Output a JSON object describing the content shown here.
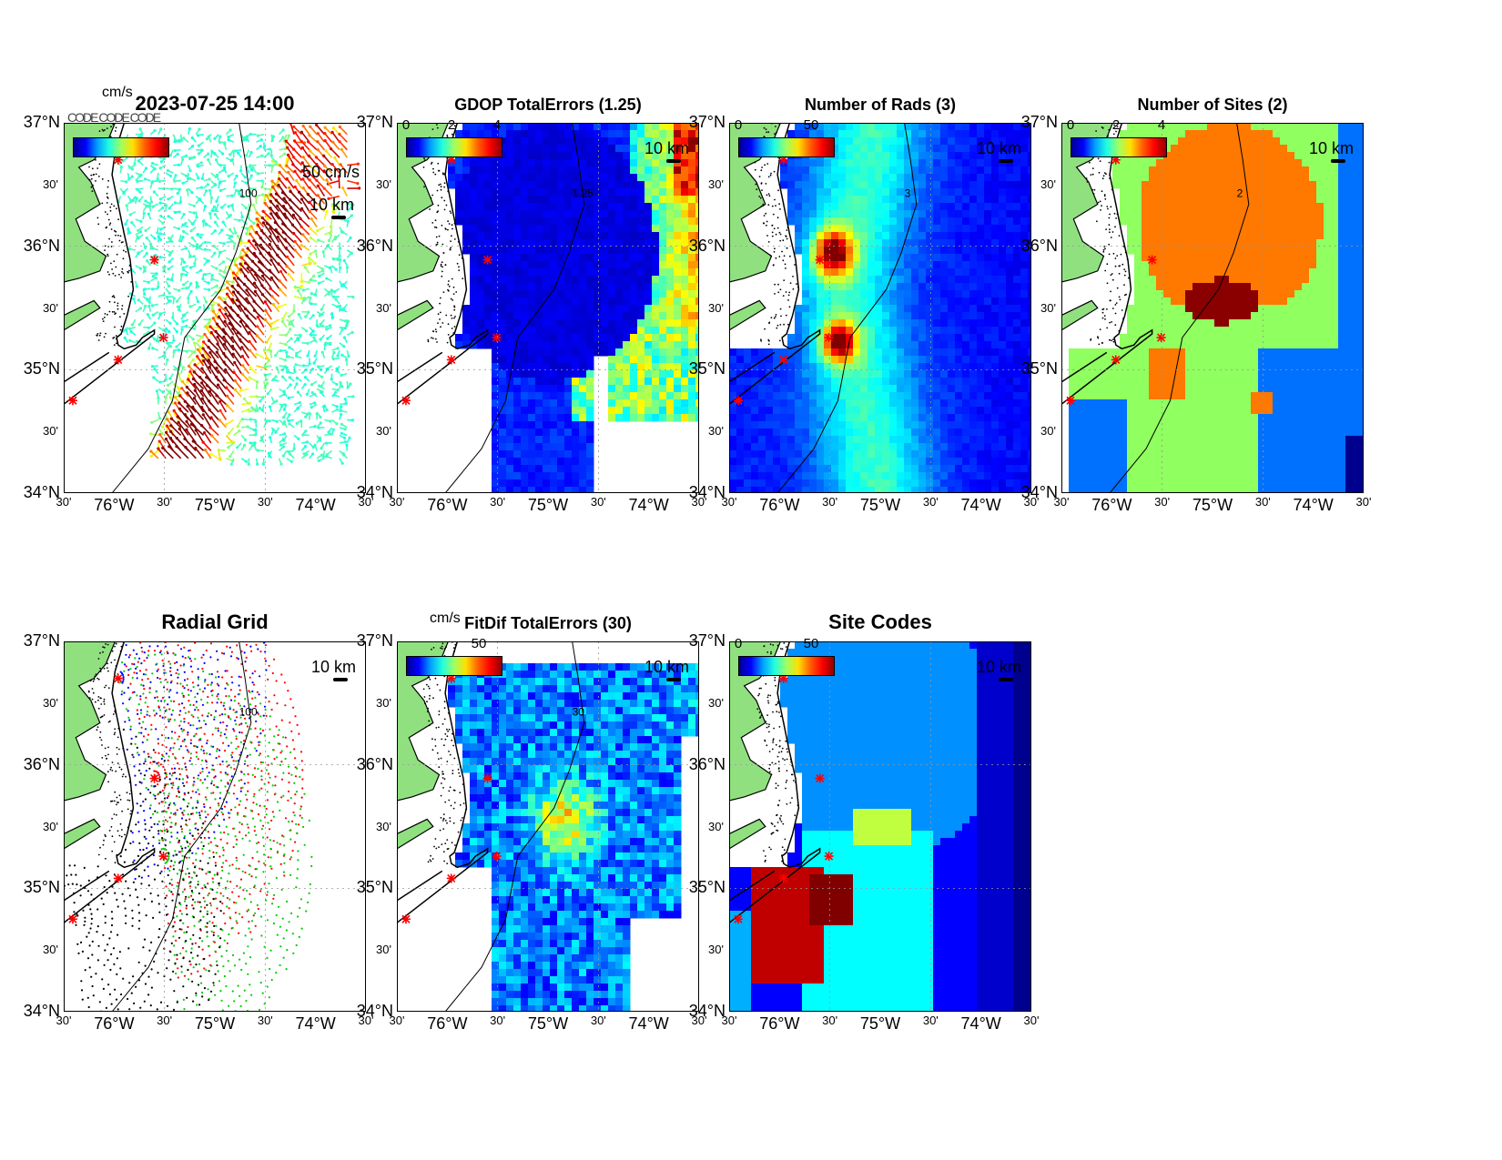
{
  "figure": {
    "panels": [
      {
        "id": "vectors",
        "title": "2023-07-25 14:00",
        "title_size": "big",
        "pos": "r1c1",
        "field": "vectors",
        "colorbar": {
          "ticks": [],
          "unit": "cm/s"
        },
        "scale_label": "10 km",
        "vector_label": "50 cm/s",
        "overlap_label": "CODE CODE CODE",
        "contour_label": "100"
      },
      {
        "id": "gdop",
        "title": "GDOP TotalErrors (1.25)",
        "title_size": "small",
        "pos": "r1c2",
        "field": "gdop",
        "colorbar": {
          "ticks": [
            "0",
            "2",
            "4"
          ],
          "unit": ""
        },
        "scale_label": "10 km",
        "contour_label": "1.25"
      },
      {
        "id": "nrads",
        "title": "Number of Rads (3)",
        "title_size": "small",
        "pos": "r1c3",
        "field": "nrads",
        "colorbar": {
          "ticks": [
            "0",
            "50"
          ],
          "unit": ""
        },
        "scale_label": "10 km",
        "contour_label": "3"
      },
      {
        "id": "nsites",
        "title": "Number of Sites (2)",
        "title_size": "small",
        "pos": "r1c4",
        "field": "nsites",
        "colorbar": {
          "ticks": [
            "0",
            "2",
            "4"
          ],
          "unit": ""
        },
        "scale_label": "10 km",
        "contour_label": "2"
      },
      {
        "id": "radgrid",
        "title": "Radial Grid",
        "title_size": "big",
        "pos": "r2c1",
        "field": "radgrid",
        "colorbar": null,
        "scale_label": "10 km",
        "contour_label": "100"
      },
      {
        "id": "fitdif",
        "title": "FitDif TotalErrors (30)",
        "title_size": "small",
        "pos": "r2c2",
        "field": "fitdif",
        "colorbar": {
          "ticks": [
            "50"
          ],
          "unit": "cm/s"
        },
        "scale_label": "10 km",
        "contour_label": "30"
      },
      {
        "id": "sitecodes",
        "title": "Site Codes",
        "title_size": "big",
        "pos": "r2c3",
        "field": "sitecodes",
        "colorbar": {
          "ticks": [
            "0",
            "50"
          ],
          "unit": ""
        },
        "scale_label": "10 km"
      }
    ],
    "axes": {
      "lat_major": [
        "37°N",
        "36°N",
        "35°N",
        "34°N"
      ],
      "lat_minor": [
        "30'",
        "30'",
        "30'"
      ],
      "lon_major": [
        "76°W",
        "75°W",
        "74°W"
      ],
      "lon_minor": [
        "30'",
        "30'",
        "30'",
        "30'"
      ],
      "lat_range": [
        34,
        37
      ],
      "lon_range": [
        -76.5,
        -73.5
      ]
    },
    "colors": {
      "land": "#90e080",
      "coast": "#000000",
      "hfr_site": "#ff0000",
      "rad_grid_sites": [
        "#0000ff",
        "#ff0000",
        "#00cc00",
        "#000000"
      ]
    }
  }
}
